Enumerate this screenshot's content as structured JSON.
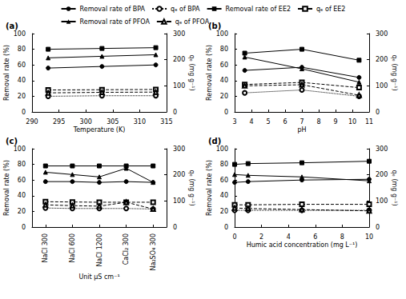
{
  "chart_data": [
    {
      "type": "line",
      "title": "(a)",
      "x_label": "Temperature (K)",
      "y_label": "Removal rate (%)",
      "y2_label": "qₑ (mg g⁻¹)",
      "x": [
        293,
        303,
        313
      ],
      "xlim": [
        290,
        315
      ],
      "xticks": [
        290,
        295,
        300,
        305,
        310,
        315
      ],
      "ylim": [
        0,
        100
      ],
      "yticks": [
        0,
        20,
        40,
        60,
        80,
        100
      ],
      "y2lim": [
        0,
        300
      ],
      "y2ticks": [
        0,
        100,
        200,
        300
      ],
      "grid": false,
      "legend": "top",
      "series": [
        {
          "name": "Removal rate of BPA",
          "color": "#000000",
          "marker": "circle",
          "line_style": "solid",
          "values": [
            56,
            58,
            60
          ]
        },
        {
          "name": "qₑ of BPA",
          "color": "#000000",
          "marker": "open_circle",
          "line_style": "dotted",
          "axis": "y2",
          "values": [
            60,
            62,
            62
          ]
        },
        {
          "name": "Removal rate of EE2",
          "color": "#000000",
          "marker": "square",
          "line_style": "solid",
          "values": [
            80,
            81,
            82
          ]
        },
        {
          "name": "qₑ of EE2",
          "color": "#000000",
          "marker": "open_square",
          "line_style": "dashed",
          "axis": "y2",
          "values": [
            84,
            85,
            86
          ]
        },
        {
          "name": "Removal rate of PFOA",
          "color": "#000000",
          "marker": "triangle",
          "line_style": "solid",
          "values": [
            69,
            71,
            73
          ]
        },
        {
          "name": "qₑ of PFOA",
          "color": "#000000",
          "marker": "open_triangle",
          "line_style": "dashed",
          "axis": "y2",
          "values": [
            73,
            75,
            76
          ]
        }
      ]
    },
    {
      "type": "line",
      "title": "(b)",
      "x_label": "pH",
      "y_label": "Removal rate (%)",
      "y2_label": "qₑ (mg g⁻¹)",
      "x": [
        3.6,
        7,
        10.4
      ],
      "xlim": [
        3,
        11
      ],
      "xticks": [
        3,
        4,
        5,
        6,
        7,
        8,
        9,
        10,
        11
      ],
      "ylim": [
        0,
        100
      ],
      "yticks": [
        0,
        20,
        40,
        60,
        80,
        100
      ],
      "y2lim": [
        0,
        300
      ],
      "y2ticks": [
        0,
        100,
        200,
        300
      ],
      "grid": false,
      "legend": "top",
      "series": [
        {
          "name": "Removal rate of BPA",
          "color": "#000000",
          "marker": "circle",
          "line_style": "solid",
          "values": [
            53,
            57,
            44
          ]
        },
        {
          "name": "qₑ of BPA",
          "color": "#000000",
          "marker": "open_circle",
          "line_style": "dotted",
          "axis": "y2",
          "values": [
            73,
            84,
            60
          ]
        },
        {
          "name": "Removal rate of EE2",
          "color": "#000000",
          "marker": "square",
          "line_style": "solid",
          "values": [
            75,
            80,
            66
          ]
        },
        {
          "name": "qₑ of EE2",
          "color": "#000000",
          "marker": "open_square",
          "line_style": "dashed",
          "axis": "y2",
          "values": [
            105,
            113,
            93
          ]
        },
        {
          "name": "Removal rate of PFOA",
          "color": "#000000",
          "marker": "triangle",
          "line_style": "solid",
          "values": [
            70,
            55,
            38
          ]
        },
        {
          "name": "qₑ of PFOA",
          "color": "#000000",
          "marker": "open_triangle",
          "line_style": "dashed",
          "axis": "y2",
          "values": [
            100,
            104,
            64
          ]
        }
      ]
    },
    {
      "type": "line",
      "title": "(c)",
      "x_label": "Unit μS cm⁻¹",
      "y_label": "Removal rate (%)",
      "y2_label": "qₑ (mg g⁻¹)",
      "categories": [
        "NaCl 300",
        "NaCl 600",
        "NaCl 1200",
        "CaCl₂ 300",
        "Na₂SO₄ 300"
      ],
      "ylim": [
        0,
        100
      ],
      "yticks": [
        0,
        20,
        40,
        60,
        80,
        100
      ],
      "y2lim": [
        0,
        300
      ],
      "y2ticks": [
        0,
        100,
        200,
        300
      ],
      "grid": false,
      "legend": "top",
      "series": [
        {
          "name": "Removal rate of BPA",
          "color": "#000000",
          "marker": "circle",
          "line_style": "solid",
          "values": [
            58,
            58,
            57,
            58,
            57
          ]
        },
        {
          "name": "qₑ of BPA",
          "color": "#000000",
          "marker": "open_circle",
          "line_style": "dotted",
          "axis": "y2",
          "values": [
            73,
            71,
            71,
            71,
            69
          ]
        },
        {
          "name": "Removal rate of EE2",
          "color": "#000000",
          "marker": "square",
          "line_style": "solid",
          "values": [
            78,
            78,
            78,
            78,
            78
          ]
        },
        {
          "name": "qₑ of EE2",
          "color": "#000000",
          "marker": "open_square",
          "line_style": "dashed",
          "axis": "y2",
          "values": [
            97,
            96,
            95,
            95,
            95
          ]
        },
        {
          "name": "Removal rate of PFOA",
          "color": "#000000",
          "marker": "triangle",
          "line_style": "solid",
          "values": [
            70,
            67,
            64,
            75,
            57
          ]
        },
        {
          "name": "qₑ of PFOA",
          "color": "#000000",
          "marker": "open_triangle",
          "line_style": "dashed",
          "axis": "y2",
          "values": [
            85,
            82,
            80,
            95,
            69
          ]
        }
      ]
    },
    {
      "type": "line",
      "title": "(d)",
      "x_label": "Humic acid concentration (mg L⁻¹)",
      "y_label": "Removal rate (%)",
      "y2_label": "qₑ (mg g⁻¹)",
      "x": [
        0,
        1,
        5,
        10
      ],
      "xlim": [
        0,
        10
      ],
      "xticks": [
        0,
        2,
        4,
        6,
        8,
        10
      ],
      "ylim": [
        0,
        100
      ],
      "yticks": [
        0,
        20,
        40,
        60,
        80,
        100
      ],
      "y2lim": [
        0,
        300
      ],
      "y2ticks": [
        0,
        100,
        200,
        300
      ],
      "grid": false,
      "legend": "top",
      "series": [
        {
          "name": "Removal rate of BPA",
          "color": "#000000",
          "marker": "circle",
          "line_style": "solid",
          "values": [
            57,
            58,
            60,
            61
          ]
        },
        {
          "name": "qₑ of BPA",
          "color": "#000000",
          "marker": "open_circle",
          "line_style": "dotted",
          "axis": "y2",
          "values": [
            64,
            64,
            64,
            64
          ]
        },
        {
          "name": "Removal rate of EE2",
          "color": "#000000",
          "marker": "square",
          "line_style": "solid",
          "values": [
            80,
            81,
            82,
            84
          ]
        },
        {
          "name": "qₑ of EE2",
          "color": "#000000",
          "marker": "open_square",
          "line_style": "dashed",
          "axis": "y2",
          "values": [
            85,
            85,
            87,
            87
          ]
        },
        {
          "name": "Removal rate of PFOA",
          "color": "#000000",
          "marker": "triangle",
          "line_style": "solid",
          "values": [
            67,
            66,
            64,
            59
          ]
        },
        {
          "name": "qₑ of PFOA",
          "color": "#000000",
          "marker": "open_triangle",
          "line_style": "dashed",
          "axis": "y2",
          "values": [
            73,
            71,
            67,
            62
          ]
        }
      ]
    }
  ]
}
